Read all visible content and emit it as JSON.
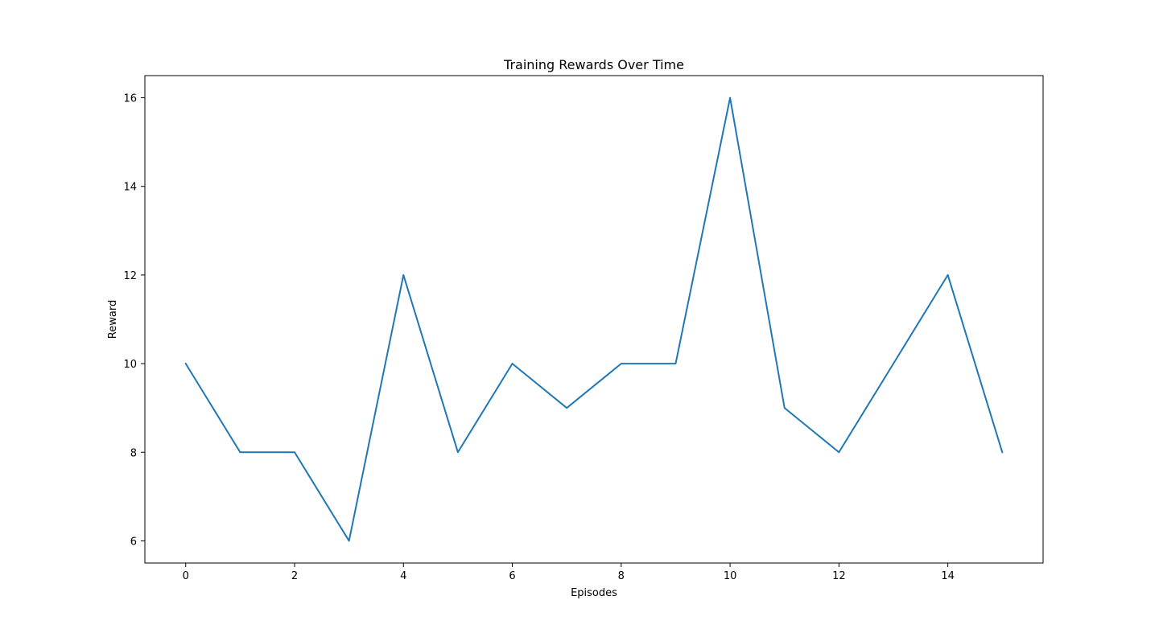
{
  "chart_data": {
    "type": "line",
    "title": "Training Rewards Over Time",
    "xlabel": "Episodes",
    "ylabel": "Reward",
    "xlim": [
      -0.75,
      15.75
    ],
    "ylim": [
      5.5,
      16.5
    ],
    "xticks": [
      0,
      2,
      4,
      6,
      8,
      10,
      12,
      14
    ],
    "yticks": [
      6,
      8,
      10,
      12,
      14,
      16
    ],
    "grid": false,
    "legend": "none",
    "series": [
      {
        "color": "#1f77b4",
        "x": [
          0,
          1,
          2,
          3,
          4,
          5,
          6,
          7,
          8,
          9,
          10,
          11,
          12,
          13,
          14,
          15
        ],
        "y": [
          10,
          8,
          8,
          6,
          12,
          8,
          10,
          9,
          10,
          10,
          16,
          9,
          8,
          10,
          12,
          8
        ]
      }
    ]
  }
}
